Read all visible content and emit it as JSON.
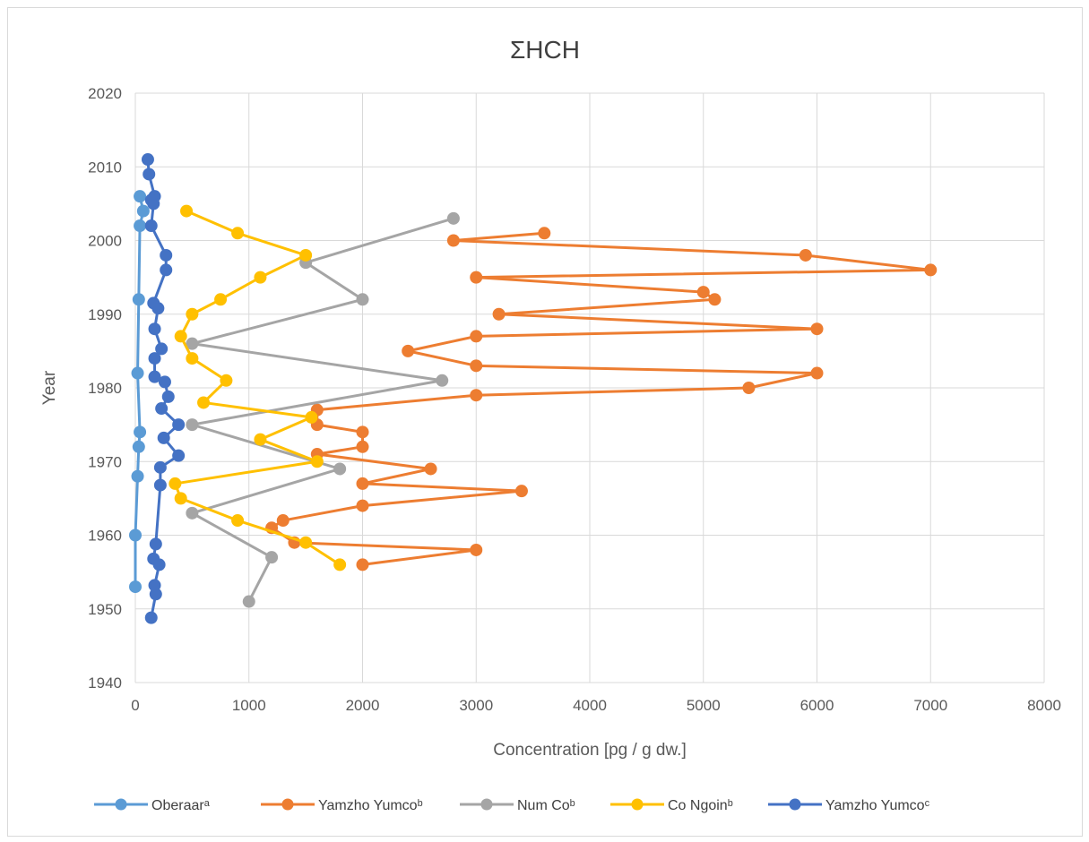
{
  "chart_data": {
    "type": "scatter",
    "title": "ΣHCH",
    "xlabel": "Concentration [pg / g dw.]",
    "ylabel": "Year",
    "xlim": [
      0,
      8000
    ],
    "ylim": [
      1940,
      2020
    ],
    "x_ticks": [
      0,
      1000,
      2000,
      3000,
      4000,
      5000,
      6000,
      7000,
      8000
    ],
    "y_ticks": [
      1940,
      1950,
      1960,
      1970,
      1980,
      1990,
      2000,
      2010,
      2020
    ],
    "grid": true,
    "legend_position": "bottom",
    "series": [
      {
        "name": "Oberaarᵃ",
        "color": "#5B9BD5",
        "points": [
          {
            "x": 40,
            "y": 2006
          },
          {
            "x": 70,
            "y": 2004
          },
          {
            "x": 40,
            "y": 2002
          },
          {
            "x": 30,
            "y": 1992
          },
          {
            "x": 20,
            "y": 1982
          },
          {
            "x": 40,
            "y": 1974
          },
          {
            "x": 30,
            "y": 1972
          },
          {
            "x": 20,
            "y": 1968
          },
          {
            "x": 0,
            "y": 1960
          },
          {
            "x": 0,
            "y": 1953
          }
        ]
      },
      {
        "name": "Yamzho Yumcoᵇ",
        "color": "#ED7D31",
        "points": [
          {
            "x": 3600,
            "y": 2001
          },
          {
            "x": 2800,
            "y": 2000
          },
          {
            "x": 5900,
            "y": 1998
          },
          {
            "x": 7000,
            "y": 1996
          },
          {
            "x": 3000,
            "y": 1995
          },
          {
            "x": 5000,
            "y": 1993
          },
          {
            "x": 5100,
            "y": 1992
          },
          {
            "x": 3200,
            "y": 1990
          },
          {
            "x": 6000,
            "y": 1988
          },
          {
            "x": 3000,
            "y": 1987
          },
          {
            "x": 2400,
            "y": 1985
          },
          {
            "x": 3000,
            "y": 1983
          },
          {
            "x": 6000,
            "y": 1982
          },
          {
            "x": 5400,
            "y": 1980
          },
          {
            "x": 3000,
            "y": 1979
          },
          {
            "x": 1600,
            "y": 1977
          },
          {
            "x": 1600,
            "y": 1975
          },
          {
            "x": 2000,
            "y": 1974
          },
          {
            "x": 2000,
            "y": 1972
          },
          {
            "x": 1600,
            "y": 1971
          },
          {
            "x": 2600,
            "y": 1969
          },
          {
            "x": 2000,
            "y": 1967
          },
          {
            "x": 3400,
            "y": 1966
          },
          {
            "x": 2000,
            "y": 1964
          },
          {
            "x": 1300,
            "y": 1962
          },
          {
            "x": 1200,
            "y": 1961
          },
          {
            "x": 1400,
            "y": 1959
          },
          {
            "x": 3000,
            "y": 1958
          },
          {
            "x": 2000,
            "y": 1956
          }
        ]
      },
      {
        "name": "Num Coᵇ",
        "color": "#A5A5A5",
        "points": [
          {
            "x": 2800,
            "y": 2003
          },
          {
            "x": 1500,
            "y": 1997
          },
          {
            "x": 2000,
            "y": 1992
          },
          {
            "x": 500,
            "y": 1986
          },
          {
            "x": 2700,
            "y": 1981
          },
          {
            "x": 500,
            "y": 1975
          },
          {
            "x": 1800,
            "y": 1969
          },
          {
            "x": 500,
            "y": 1963
          },
          {
            "x": 1200,
            "y": 1957
          },
          {
            "x": 1000,
            "y": 1951
          }
        ]
      },
      {
        "name": "Co Ngoinᵇ",
        "color": "#FFC000",
        "points": [
          {
            "x": 450,
            "y": 2004
          },
          {
            "x": 900,
            "y": 2001
          },
          {
            "x": 1500,
            "y": 1998
          },
          {
            "x": 1100,
            "y": 1995
          },
          {
            "x": 750,
            "y": 1992
          },
          {
            "x": 500,
            "y": 1990
          },
          {
            "x": 400,
            "y": 1987
          },
          {
            "x": 500,
            "y": 1984
          },
          {
            "x": 800,
            "y": 1981
          },
          {
            "x": 600,
            "y": 1978
          },
          {
            "x": 1550,
            "y": 1976
          },
          {
            "x": 1100,
            "y": 1973
          },
          {
            "x": 1600,
            "y": 1970
          },
          {
            "x": 350,
            "y": 1967
          },
          {
            "x": 400,
            "y": 1965
          },
          {
            "x": 900,
            "y": 1962
          },
          {
            "x": 1500,
            "y": 1959
          },
          {
            "x": 1800,
            "y": 1956
          }
        ]
      },
      {
        "name": "Yamzho Yumcoᶜ",
        "color": "#4472C4",
        "points": [
          {
            "x": 110,
            "y": 2011
          },
          {
            "x": 120,
            "y": 2009
          },
          {
            "x": 170,
            "y": 2006
          },
          {
            "x": 140,
            "y": 2005.5
          },
          {
            "x": 160,
            "y": 2005
          },
          {
            "x": 140,
            "y": 2002
          },
          {
            "x": 270,
            "y": 1998
          },
          {
            "x": 270,
            "y": 1996
          },
          {
            "x": 160,
            "y": 1991.5
          },
          {
            "x": 200,
            "y": 1990.8
          },
          {
            "x": 170,
            "y": 1988
          },
          {
            "x": 230,
            "y": 1985.3
          },
          {
            "x": 170,
            "y": 1984
          },
          {
            "x": 170,
            "y": 1981.5
          },
          {
            "x": 260,
            "y": 1980.8
          },
          {
            "x": 290,
            "y": 1978.8
          },
          {
            "x": 230,
            "y": 1977.2
          },
          {
            "x": 380,
            "y": 1975
          },
          {
            "x": 250,
            "y": 1973.2
          },
          {
            "x": 380,
            "y": 1970.8
          },
          {
            "x": 220,
            "y": 1969.2
          },
          {
            "x": 220,
            "y": 1966.8
          },
          {
            "x": 180,
            "y": 1958.8
          },
          {
            "x": 160,
            "y": 1956.8
          },
          {
            "x": 210,
            "y": 1956
          },
          {
            "x": 170,
            "y": 1953.2
          },
          {
            "x": 180,
            "y": 1952
          },
          {
            "x": 140,
            "y": 1948.8
          }
        ]
      }
    ]
  }
}
